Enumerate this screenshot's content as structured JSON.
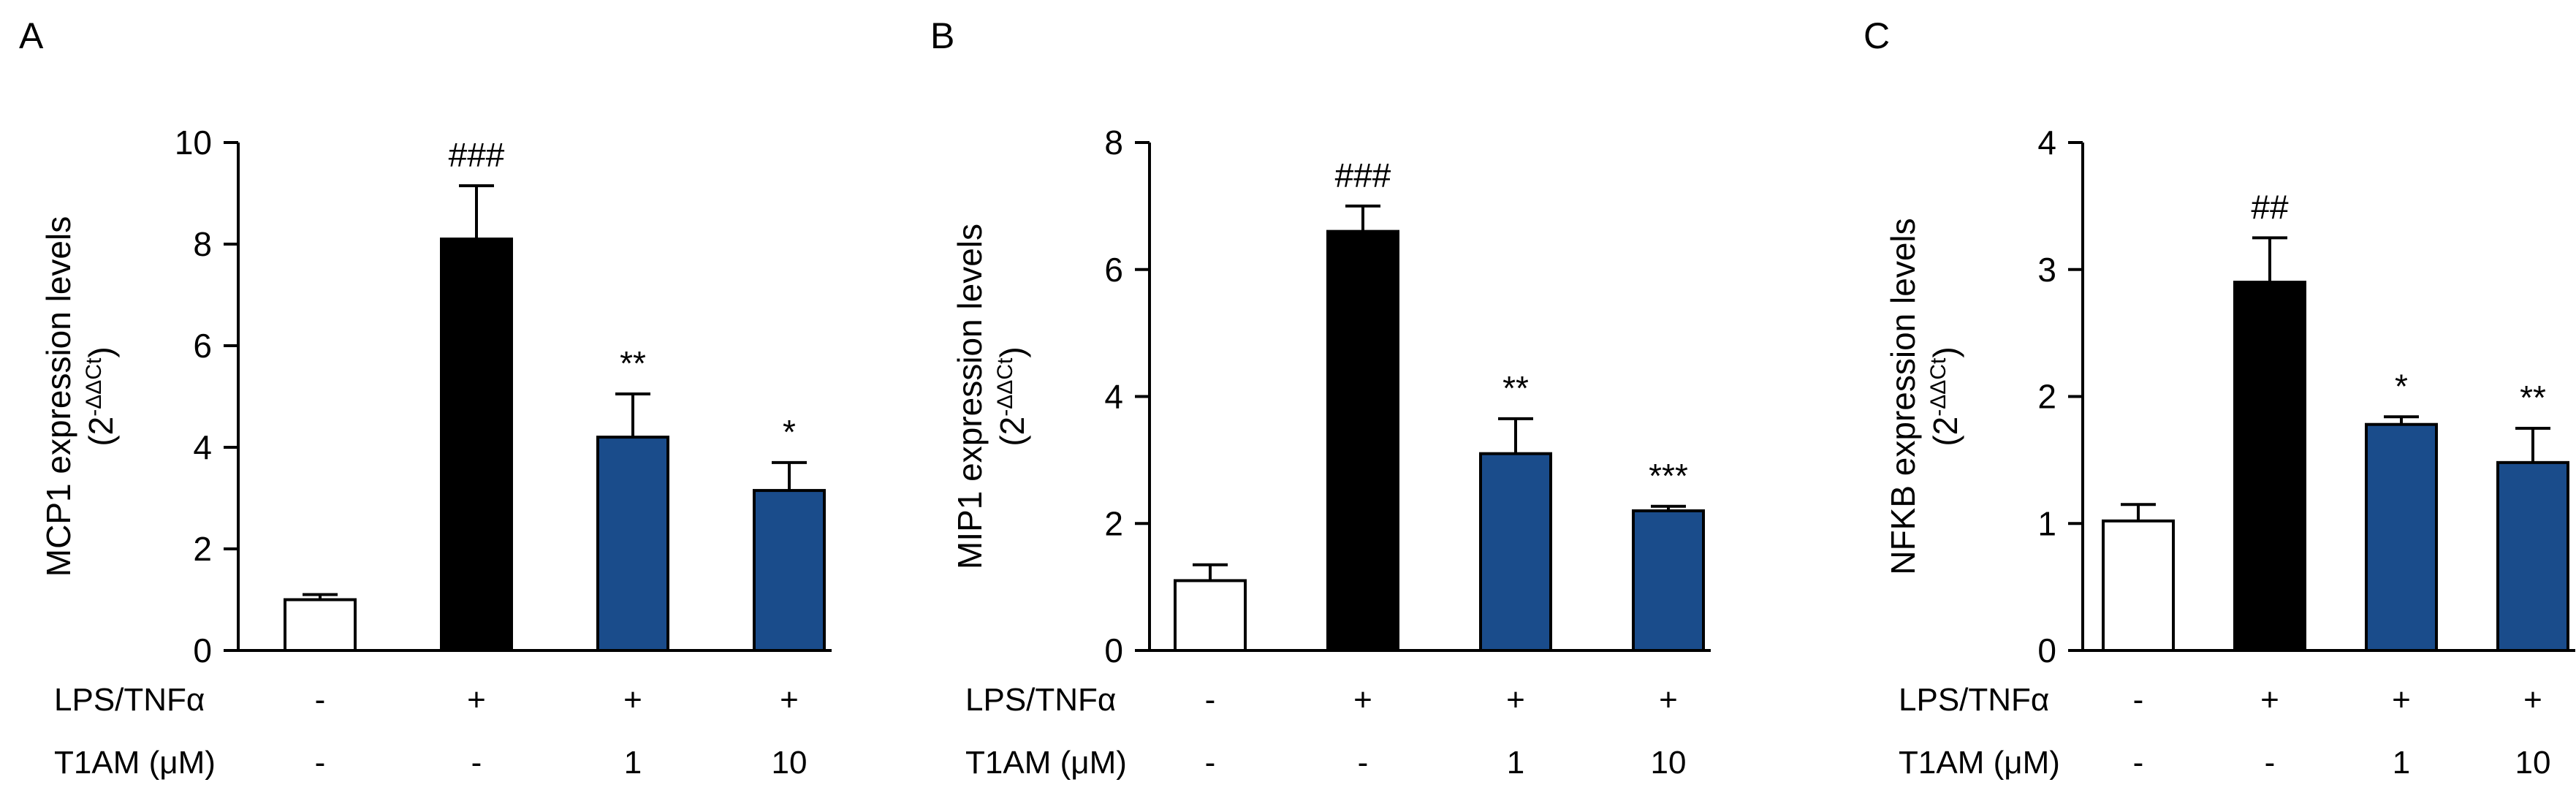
{
  "figure": {
    "background": "#ffffff",
    "bar_outline_color": "#000000",
    "control_bar_color": "#ffffff",
    "stimulated_bar_color": "#000000",
    "treatment_bar_color": "#1a4c8b"
  },
  "chart_data": [
    {
      "type": "bar",
      "panel": "A",
      "ylabel": "MCP1 expression levels",
      "ylabel_sub": {
        "prefix": "(2",
        "sup": "-ΔΔCt",
        "suffix": ")"
      },
      "ylim": [
        0,
        10
      ],
      "yticks": [
        0,
        2,
        4,
        6,
        8,
        10
      ],
      "grid": false,
      "legend": "none",
      "categories": [
        "control",
        "LPS/TNFα",
        "LPS/TNFα + T1AM 1 μM",
        "LPS/TNFα + T1AM 10 μM"
      ],
      "values": [
        1.0,
        8.1,
        4.2,
        3.15
      ],
      "errors": [
        0.1,
        1.05,
        0.85,
        0.55
      ],
      "bar_fills": [
        "#ffffff",
        "#000000",
        "#1a4c8b",
        "#1a4c8b"
      ],
      "annotations": [
        "",
        "###",
        "**",
        "*"
      ],
      "x_rows": [
        {
          "label": "LPS/TNFα",
          "values": [
            "-",
            "+",
            "+",
            "+"
          ]
        },
        {
          "label": "T1AM (μM)",
          "values": [
            "-",
            "-",
            "1",
            "10"
          ]
        }
      ]
    },
    {
      "type": "bar",
      "panel": "B",
      "ylabel": "MIP1 expression levels",
      "ylabel_sub": {
        "prefix": "(2",
        "sup": "-ΔΔCt",
        "suffix": ")"
      },
      "ylim": [
        0,
        8
      ],
      "yticks": [
        0,
        2,
        4,
        6,
        8
      ],
      "grid": false,
      "legend": "none",
      "categories": [
        "control",
        "LPS/TNFα",
        "LPS/TNFα + T1AM 1 μM",
        "LPS/TNFα + T1AM 10 μM"
      ],
      "values": [
        1.1,
        6.6,
        3.1,
        2.2
      ],
      "errors": [
        0.25,
        0.4,
        0.55,
        0.07
      ],
      "bar_fills": [
        "#ffffff",
        "#000000",
        "#1a4c8b",
        "#1a4c8b"
      ],
      "annotations": [
        "",
        "###",
        "**",
        "***"
      ],
      "x_rows": [
        {
          "label": "LPS/TNFα",
          "values": [
            "-",
            "+",
            "+",
            "+"
          ]
        },
        {
          "label": "T1AM (μM)",
          "values": [
            "-",
            "-",
            "1",
            "10"
          ]
        }
      ]
    },
    {
      "type": "bar",
      "panel": "C",
      "ylabel": "NFKB expression levels",
      "ylabel_sub": {
        "prefix": "(2",
        "sup": "-ΔΔCt",
        "suffix": ")"
      },
      "ylim": [
        0,
        4
      ],
      "yticks": [
        0,
        1,
        2,
        3,
        4
      ],
      "grid": false,
      "legend": "none",
      "categories": [
        "control",
        "LPS/TNFα",
        "LPS/TNFα + T1AM 1 μM",
        "LPS/TNFα + T1AM 10 μM"
      ],
      "values": [
        1.02,
        2.9,
        1.78,
        1.48
      ],
      "errors": [
        0.13,
        0.35,
        0.06,
        0.27
      ],
      "bar_fills": [
        "#ffffff",
        "#000000",
        "#1a4c8b",
        "#1a4c8b"
      ],
      "annotations": [
        "",
        "##",
        "*",
        "**"
      ],
      "x_rows": [
        {
          "label": "LPS/TNFα",
          "values": [
            "-",
            "+",
            "+",
            "+"
          ]
        },
        {
          "label": "T1AM (μM)",
          "values": [
            "-",
            "-",
            "1",
            "10"
          ]
        }
      ]
    }
  ]
}
